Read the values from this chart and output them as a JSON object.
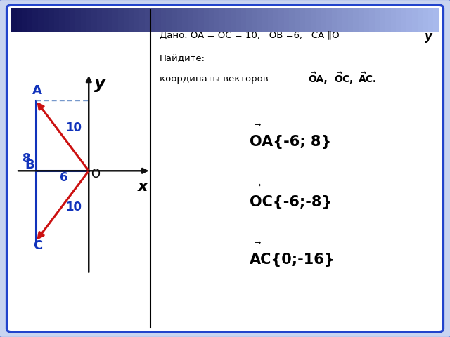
{
  "background_color": "#ffffff",
  "border_outer_color": "#2244cc",
  "border_inner_color": "#2244cc",
  "top_bar_color_left": "#111155",
  "top_bar_color_right": "#aabbee",
  "O": [
    0,
    0
  ],
  "A": [
    -6,
    8
  ],
  "B": [
    -6,
    0
  ],
  "C": [
    -6,
    -8
  ],
  "xlim": [
    -8.5,
    7
  ],
  "ylim": [
    -12,
    11
  ],
  "blue_color": "#1133bb",
  "red_color": "#cc1111",
  "dashed_color": "#7799cc",
  "axis_color": "#111111",
  "label_A": "A",
  "label_B": "B",
  "label_C": "C",
  "label_O": "O",
  "label_x": "x",
  "label_y": "y",
  "label_10_OA": "10",
  "label_10_OC": "10",
  "label_8": "8",
  "label_6": "6",
  "dado_line1": "Дано: OA = OC = 10,   OB =6,   CA ∥O",
  "dado_y_suffix": "y",
  "dado_line2": "Найдите:",
  "dado_line3": "координаты векторов",
  "vec_OA_label": "OA,",
  "vec_OC_label": "OC,",
  "vec_AC_label": "AC.",
  "ans1_main": "OA{-6; 8}",
  "ans2_main": "OC{-6;-8}",
  "ans3_main": "AC{0;-16}",
  "divider_x": 0.335
}
